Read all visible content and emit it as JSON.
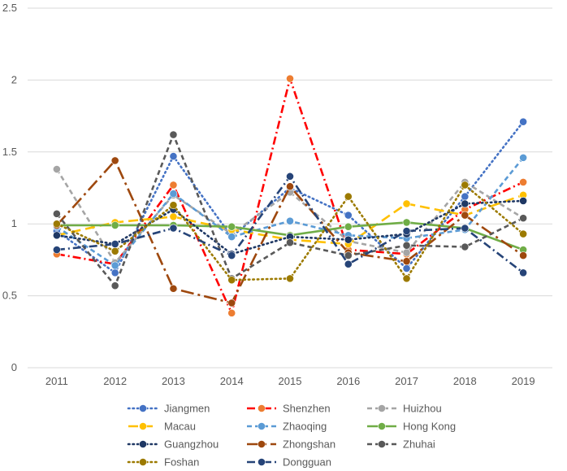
{
  "chart_data": {
    "type": "line",
    "title": "",
    "xlabel": "",
    "ylabel": "",
    "x": [
      "2011",
      "2012",
      "2013",
      "2014",
      "2015",
      "2016",
      "2017",
      "2018",
      "2019"
    ],
    "ylim": [
      0,
      2.5
    ],
    "yticks": [
      "0",
      "0.5",
      "1",
      "1.5",
      "2",
      "2.5"
    ],
    "grid": "horizontal",
    "legend_position": "bottom",
    "series": [
      {
        "name": "Jiangmen",
        "color": "#4472C4",
        "marker": "#4472C4",
        "dash": "dot",
        "values": [
          0.95,
          0.66,
          1.47,
          0.91,
          1.25,
          1.06,
          0.69,
          1.19,
          1.71
        ]
      },
      {
        "name": "Shenzhen",
        "color": "#FF0000",
        "marker": "#ED7D31",
        "dash": "dashdot",
        "values": [
          0.79,
          0.72,
          1.27,
          0.38,
          2.01,
          0.82,
          0.79,
          1.1,
          1.29
        ]
      },
      {
        "name": "Huizhou",
        "color": "#A5A5A5",
        "marker": "#A5A5A5",
        "dash": "dash",
        "values": [
          1.38,
          0.73,
          1.2,
          0.93,
          1.22,
          0.88,
          0.8,
          1.29,
          1.04
        ]
      },
      {
        "name": "Macau",
        "color": "#FFC000",
        "marker": "#FFC000",
        "dash": "longdash",
        "values": [
          0.92,
          1.01,
          1.05,
          0.96,
          0.89,
          0.86,
          1.14,
          1.06,
          1.2
        ]
      },
      {
        "name": "Zhaoqing",
        "color": "#5B9BD5",
        "marker": "#5B9BD5",
        "dash": "dash",
        "values": [
          0.98,
          0.71,
          1.21,
          0.91,
          1.02,
          0.92,
          0.9,
          0.96,
          1.46
        ]
      },
      {
        "name": "Hong Kong",
        "color": "#70AD47",
        "marker": "#70AD47",
        "dash": "solid",
        "values": [
          0.99,
          0.99,
          0.99,
          0.98,
          0.92,
          0.98,
          1.01,
          0.97,
          0.82
        ]
      },
      {
        "name": "Guangzhou",
        "color": "#1F3864",
        "marker": "#1F3864",
        "dash": "dot",
        "values": [
          0.92,
          0.86,
          1.1,
          0.79,
          0.91,
          0.89,
          0.93,
          1.14,
          1.16
        ]
      },
      {
        "name": "Zhongshan",
        "color": "#9E480E",
        "marker": "#9E480E",
        "dash": "longdashdot",
        "values": [
          0.99,
          1.44,
          0.55,
          0.45,
          1.26,
          0.8,
          0.74,
          1.06,
          0.78
        ]
      },
      {
        "name": "Zhuhai",
        "color": "#595959",
        "marker": "#595959",
        "dash": "dash",
        "values": [
          1.07,
          0.57,
          1.62,
          0.62,
          0.87,
          0.78,
          0.85,
          0.84,
          1.04
        ]
      },
      {
        "name": "Foshan",
        "color": "#9C7A00",
        "marker": "#9C7A00",
        "dash": "dot",
        "values": [
          1.0,
          0.81,
          1.13,
          0.61,
          0.62,
          1.19,
          0.62,
          1.27,
          0.93
        ]
      },
      {
        "name": "Dongguan",
        "color": "#264478",
        "marker": "#264478",
        "dash": "dashdot",
        "values": [
          0.82,
          0.86,
          0.97,
          0.78,
          1.33,
          0.72,
          0.95,
          0.97,
          0.66
        ]
      }
    ]
  }
}
